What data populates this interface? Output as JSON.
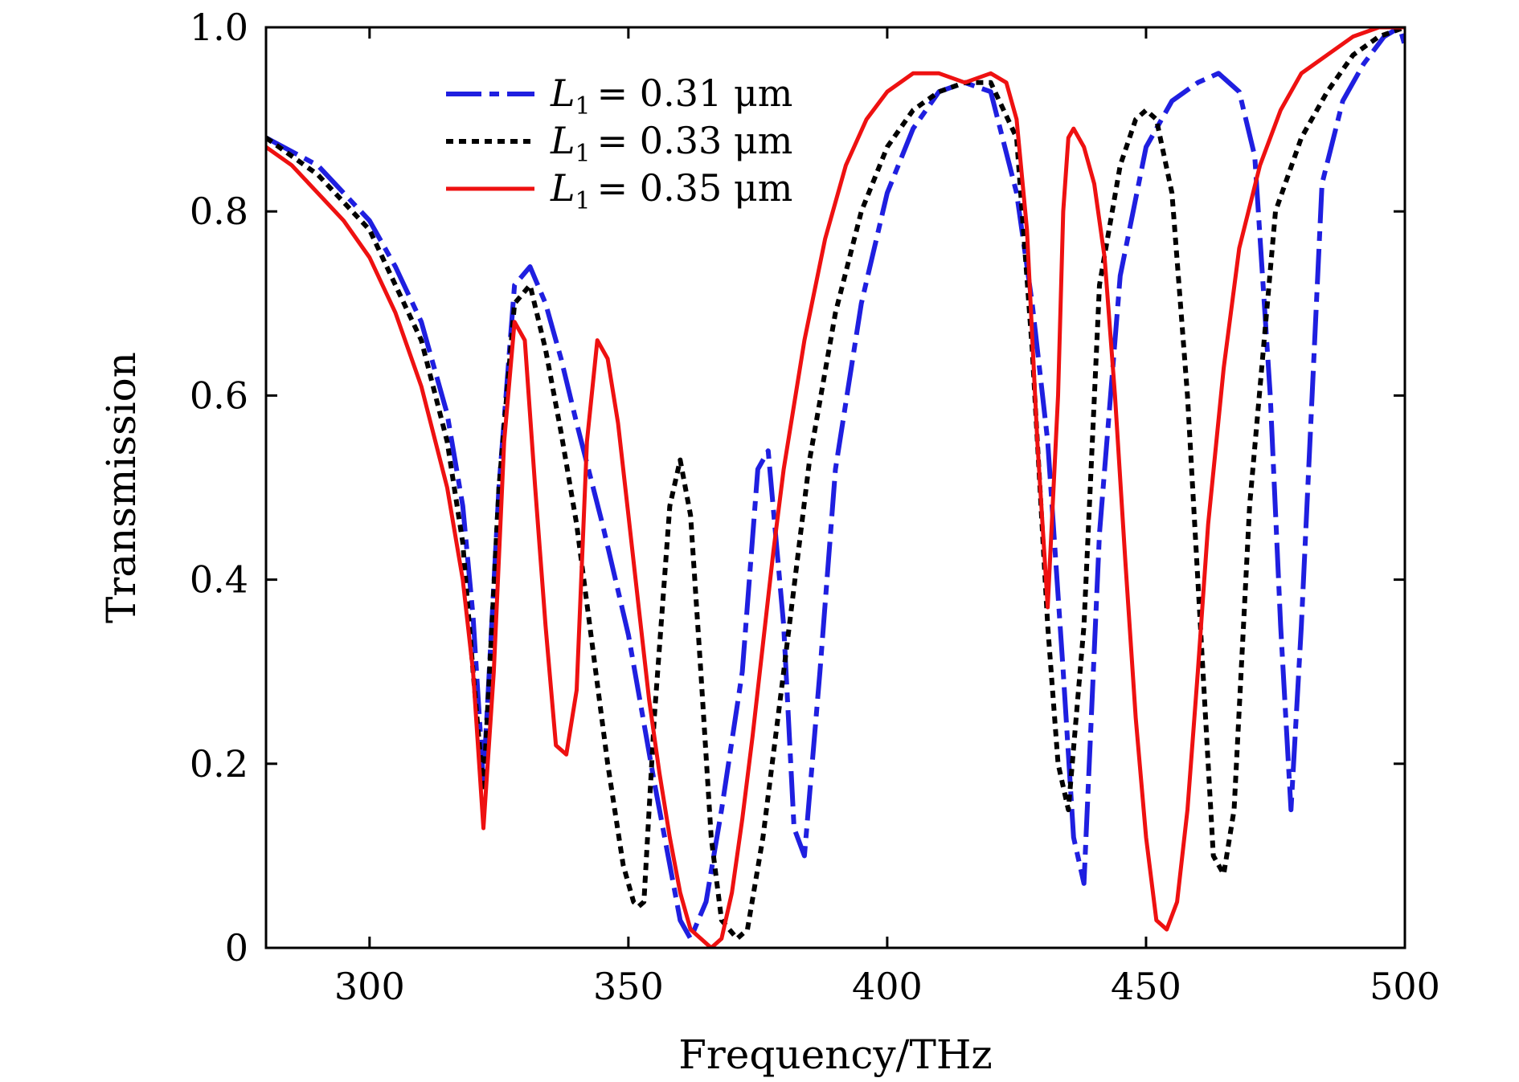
{
  "chart_data": {
    "type": "line",
    "title": "",
    "xlabel": "Frequency/THz",
    "ylabel": "Transmission",
    "xlim": [
      280,
      500
    ],
    "ylim": [
      0,
      1.0
    ],
    "xticks": [
      300,
      350,
      400,
      450,
      500
    ],
    "xtick_labels": [
      "300",
      "350",
      "400",
      "450",
      "500"
    ],
    "yticks": [
      0,
      0.2,
      0.4,
      0.6,
      0.8,
      1.0
    ],
    "ytick_labels": [
      "0",
      "0.2",
      "0.4",
      "0.6",
      "0.8",
      "1.0"
    ],
    "grid": false,
    "legend_position": "top-left",
    "series": [
      {
        "name": "L1 = 0.31 μm",
        "legend_symbol": "L",
        "legend_subscript": "1",
        "legend_value": "= 0.31 μm",
        "color": "#1f1fe0",
        "style": "dashdot",
        "x": [
          280,
          290,
          300,
          305,
          310,
          315,
          318,
          320,
          322,
          325,
          328,
          331,
          334,
          337,
          340,
          345,
          350,
          355,
          360,
          362,
          365,
          368,
          372,
          375,
          377,
          380,
          382,
          384,
          387,
          390,
          395,
          400,
          405,
          410,
          415,
          420,
          425,
          428,
          431,
          434,
          436,
          438,
          441,
          445,
          450,
          455,
          460,
          464,
          468,
          471,
          474,
          476,
          478,
          480,
          484,
          488,
          492,
          496,
          499,
          500
        ],
        "y": [
          0.88,
          0.85,
          0.79,
          0.74,
          0.68,
          0.58,
          0.48,
          0.36,
          0.18,
          0.5,
          0.72,
          0.74,
          0.7,
          0.64,
          0.57,
          0.46,
          0.34,
          0.18,
          0.03,
          0.01,
          0.05,
          0.15,
          0.3,
          0.52,
          0.54,
          0.35,
          0.13,
          0.1,
          0.3,
          0.52,
          0.7,
          0.82,
          0.89,
          0.93,
          0.94,
          0.93,
          0.82,
          0.7,
          0.55,
          0.3,
          0.12,
          0.07,
          0.45,
          0.73,
          0.87,
          0.92,
          0.94,
          0.95,
          0.93,
          0.86,
          0.6,
          0.35,
          0.15,
          0.35,
          0.83,
          0.92,
          0.96,
          0.99,
          1.0,
          0.98
        ]
      },
      {
        "name": "L1 = 0.33 μm",
        "legend_symbol": "L",
        "legend_subscript": "1",
        "legend_value": "= 0.33 μm",
        "color": "#000000",
        "style": "dotted",
        "x": [
          280,
          290,
          300,
          305,
          310,
          315,
          318,
          320,
          322,
          325,
          328,
          331,
          334,
          337,
          340,
          343,
          346,
          349,
          351,
          352,
          353,
          355,
          358,
          360,
          362,
          364,
          366,
          368,
          371,
          373,
          376,
          380,
          385,
          390,
          395,
          400,
          405,
          410,
          415,
          420,
          425,
          428,
          431,
          433,
          435,
          438,
          441,
          445,
          448,
          450,
          452,
          455,
          458,
          461,
          463,
          465,
          467,
          470,
          475,
          480,
          485,
          490,
          495,
          500
        ],
        "y": [
          0.88,
          0.84,
          0.78,
          0.72,
          0.66,
          0.55,
          0.44,
          0.3,
          0.17,
          0.5,
          0.7,
          0.72,
          0.65,
          0.56,
          0.46,
          0.33,
          0.2,
          0.09,
          0.05,
          0.045,
          0.05,
          0.25,
          0.48,
          0.53,
          0.47,
          0.3,
          0.12,
          0.03,
          0.01,
          0.02,
          0.12,
          0.3,
          0.53,
          0.69,
          0.8,
          0.87,
          0.91,
          0.93,
          0.94,
          0.94,
          0.88,
          0.65,
          0.35,
          0.2,
          0.15,
          0.35,
          0.72,
          0.85,
          0.9,
          0.91,
          0.9,
          0.82,
          0.6,
          0.3,
          0.1,
          0.08,
          0.15,
          0.48,
          0.8,
          0.88,
          0.93,
          0.97,
          0.99,
          1.0
        ]
      },
      {
        "name": "L1 = 0.35 μm",
        "legend_symbol": "L",
        "legend_subscript": "1",
        "legend_value": "= 0.35 μm",
        "color": "#ee1111",
        "style": "solid",
        "x": [
          280,
          285,
          290,
          295,
          300,
          305,
          310,
          315,
          318,
          320,
          322,
          324,
          326,
          328,
          330,
          332,
          334,
          336,
          338,
          340,
          342,
          344,
          346,
          348,
          350,
          352,
          354,
          356,
          358,
          360,
          362,
          364,
          366,
          368,
          370,
          372,
          374,
          376,
          378,
          380,
          384,
          388,
          392,
          396,
          400,
          405,
          410,
          415,
          420,
          423,
          425,
          427,
          429,
          431,
          433,
          434,
          435,
          436,
          438,
          440,
          442,
          444,
          446,
          448,
          450,
          452,
          454,
          456,
          458,
          460,
          462,
          465,
          468,
          472,
          476,
          480,
          485,
          490,
          495,
          500
        ],
        "y": [
          0.87,
          0.85,
          0.82,
          0.79,
          0.75,
          0.69,
          0.61,
          0.5,
          0.4,
          0.3,
          0.13,
          0.3,
          0.55,
          0.68,
          0.66,
          0.5,
          0.35,
          0.22,
          0.21,
          0.28,
          0.55,
          0.66,
          0.64,
          0.57,
          0.47,
          0.37,
          0.27,
          0.19,
          0.12,
          0.06,
          0.02,
          0.01,
          0.0,
          0.01,
          0.06,
          0.14,
          0.23,
          0.33,
          0.43,
          0.52,
          0.66,
          0.77,
          0.85,
          0.9,
          0.93,
          0.95,
          0.95,
          0.94,
          0.95,
          0.94,
          0.9,
          0.78,
          0.55,
          0.37,
          0.6,
          0.8,
          0.88,
          0.89,
          0.87,
          0.83,
          0.75,
          0.6,
          0.42,
          0.25,
          0.12,
          0.03,
          0.02,
          0.05,
          0.15,
          0.3,
          0.46,
          0.63,
          0.76,
          0.85,
          0.91,
          0.95,
          0.97,
          0.99,
          1.0,
          1.0
        ]
      }
    ]
  }
}
